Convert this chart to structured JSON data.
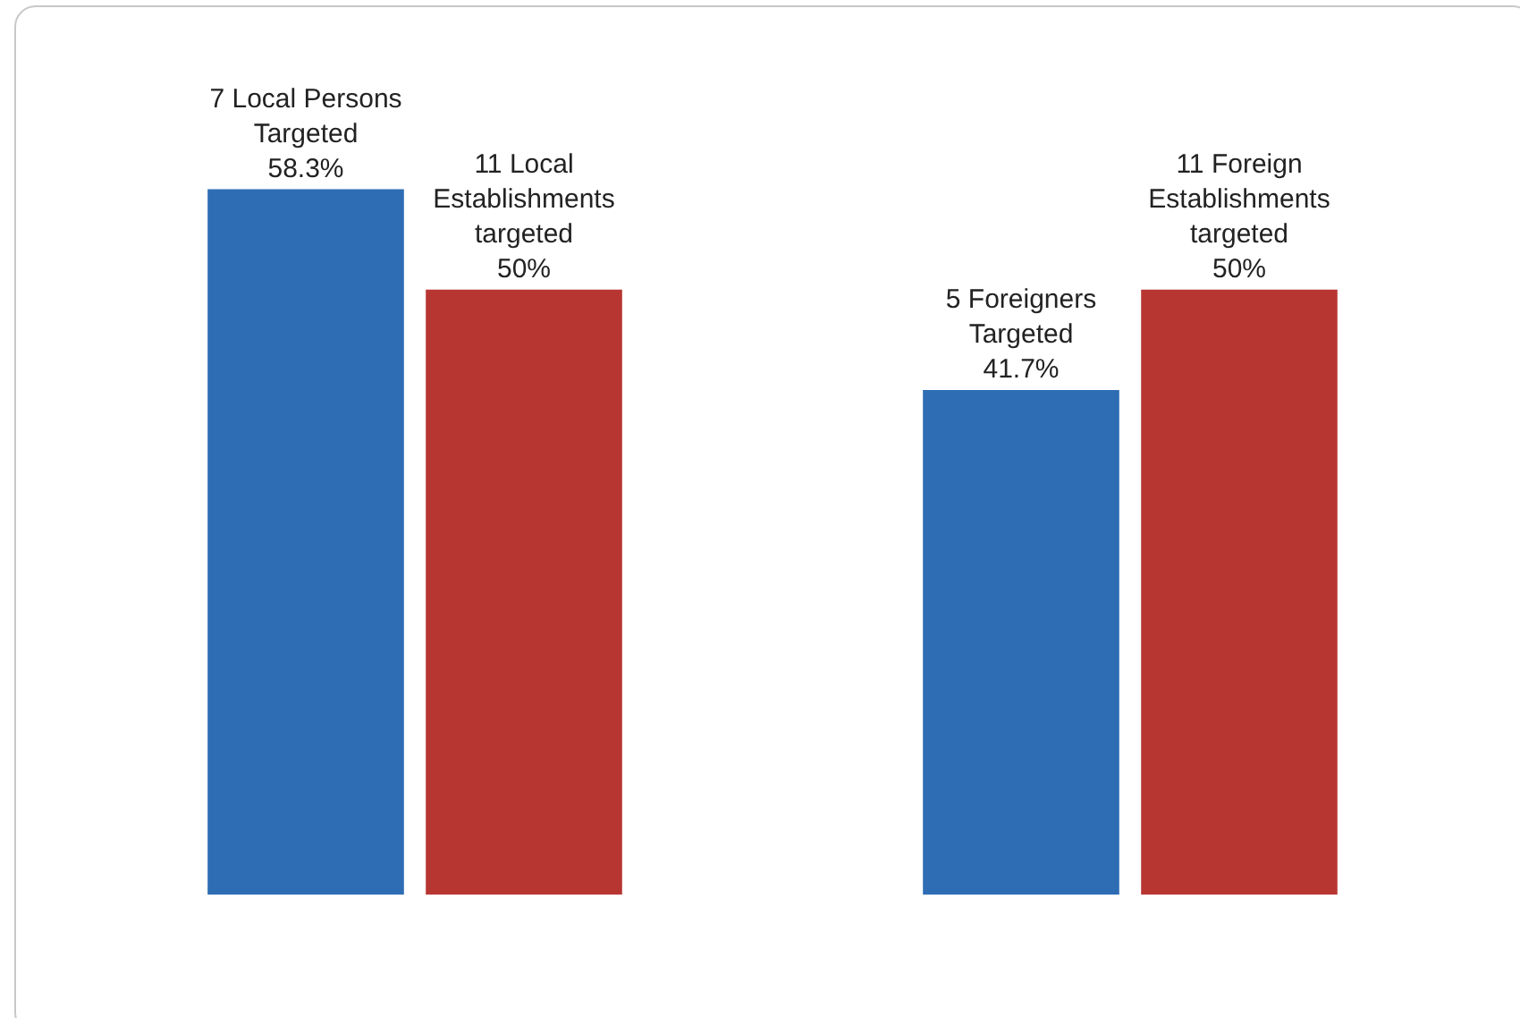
{
  "chart_data": {
    "type": "bar",
    "categories": [
      null,
      null
    ],
    "series": [
      {
        "color": "#2e6db4",
        "values": [
          58.3,
          41.7
        ],
        "value_labels": [
          "7 Local Persons\nTargeted\n58.3%",
          "5 Foreigners\nTargeted\n41.7%"
        ]
      },
      {
        "color": "#b83632",
        "values": [
          50,
          50
        ],
        "value_labels": [
          "11 Local\nEstablishments\ntargeted\n50%",
          "11 Foreign\nEstablishments\ntargeted\n50%"
        ]
      }
    ],
    "tick_labels": false
  }
}
